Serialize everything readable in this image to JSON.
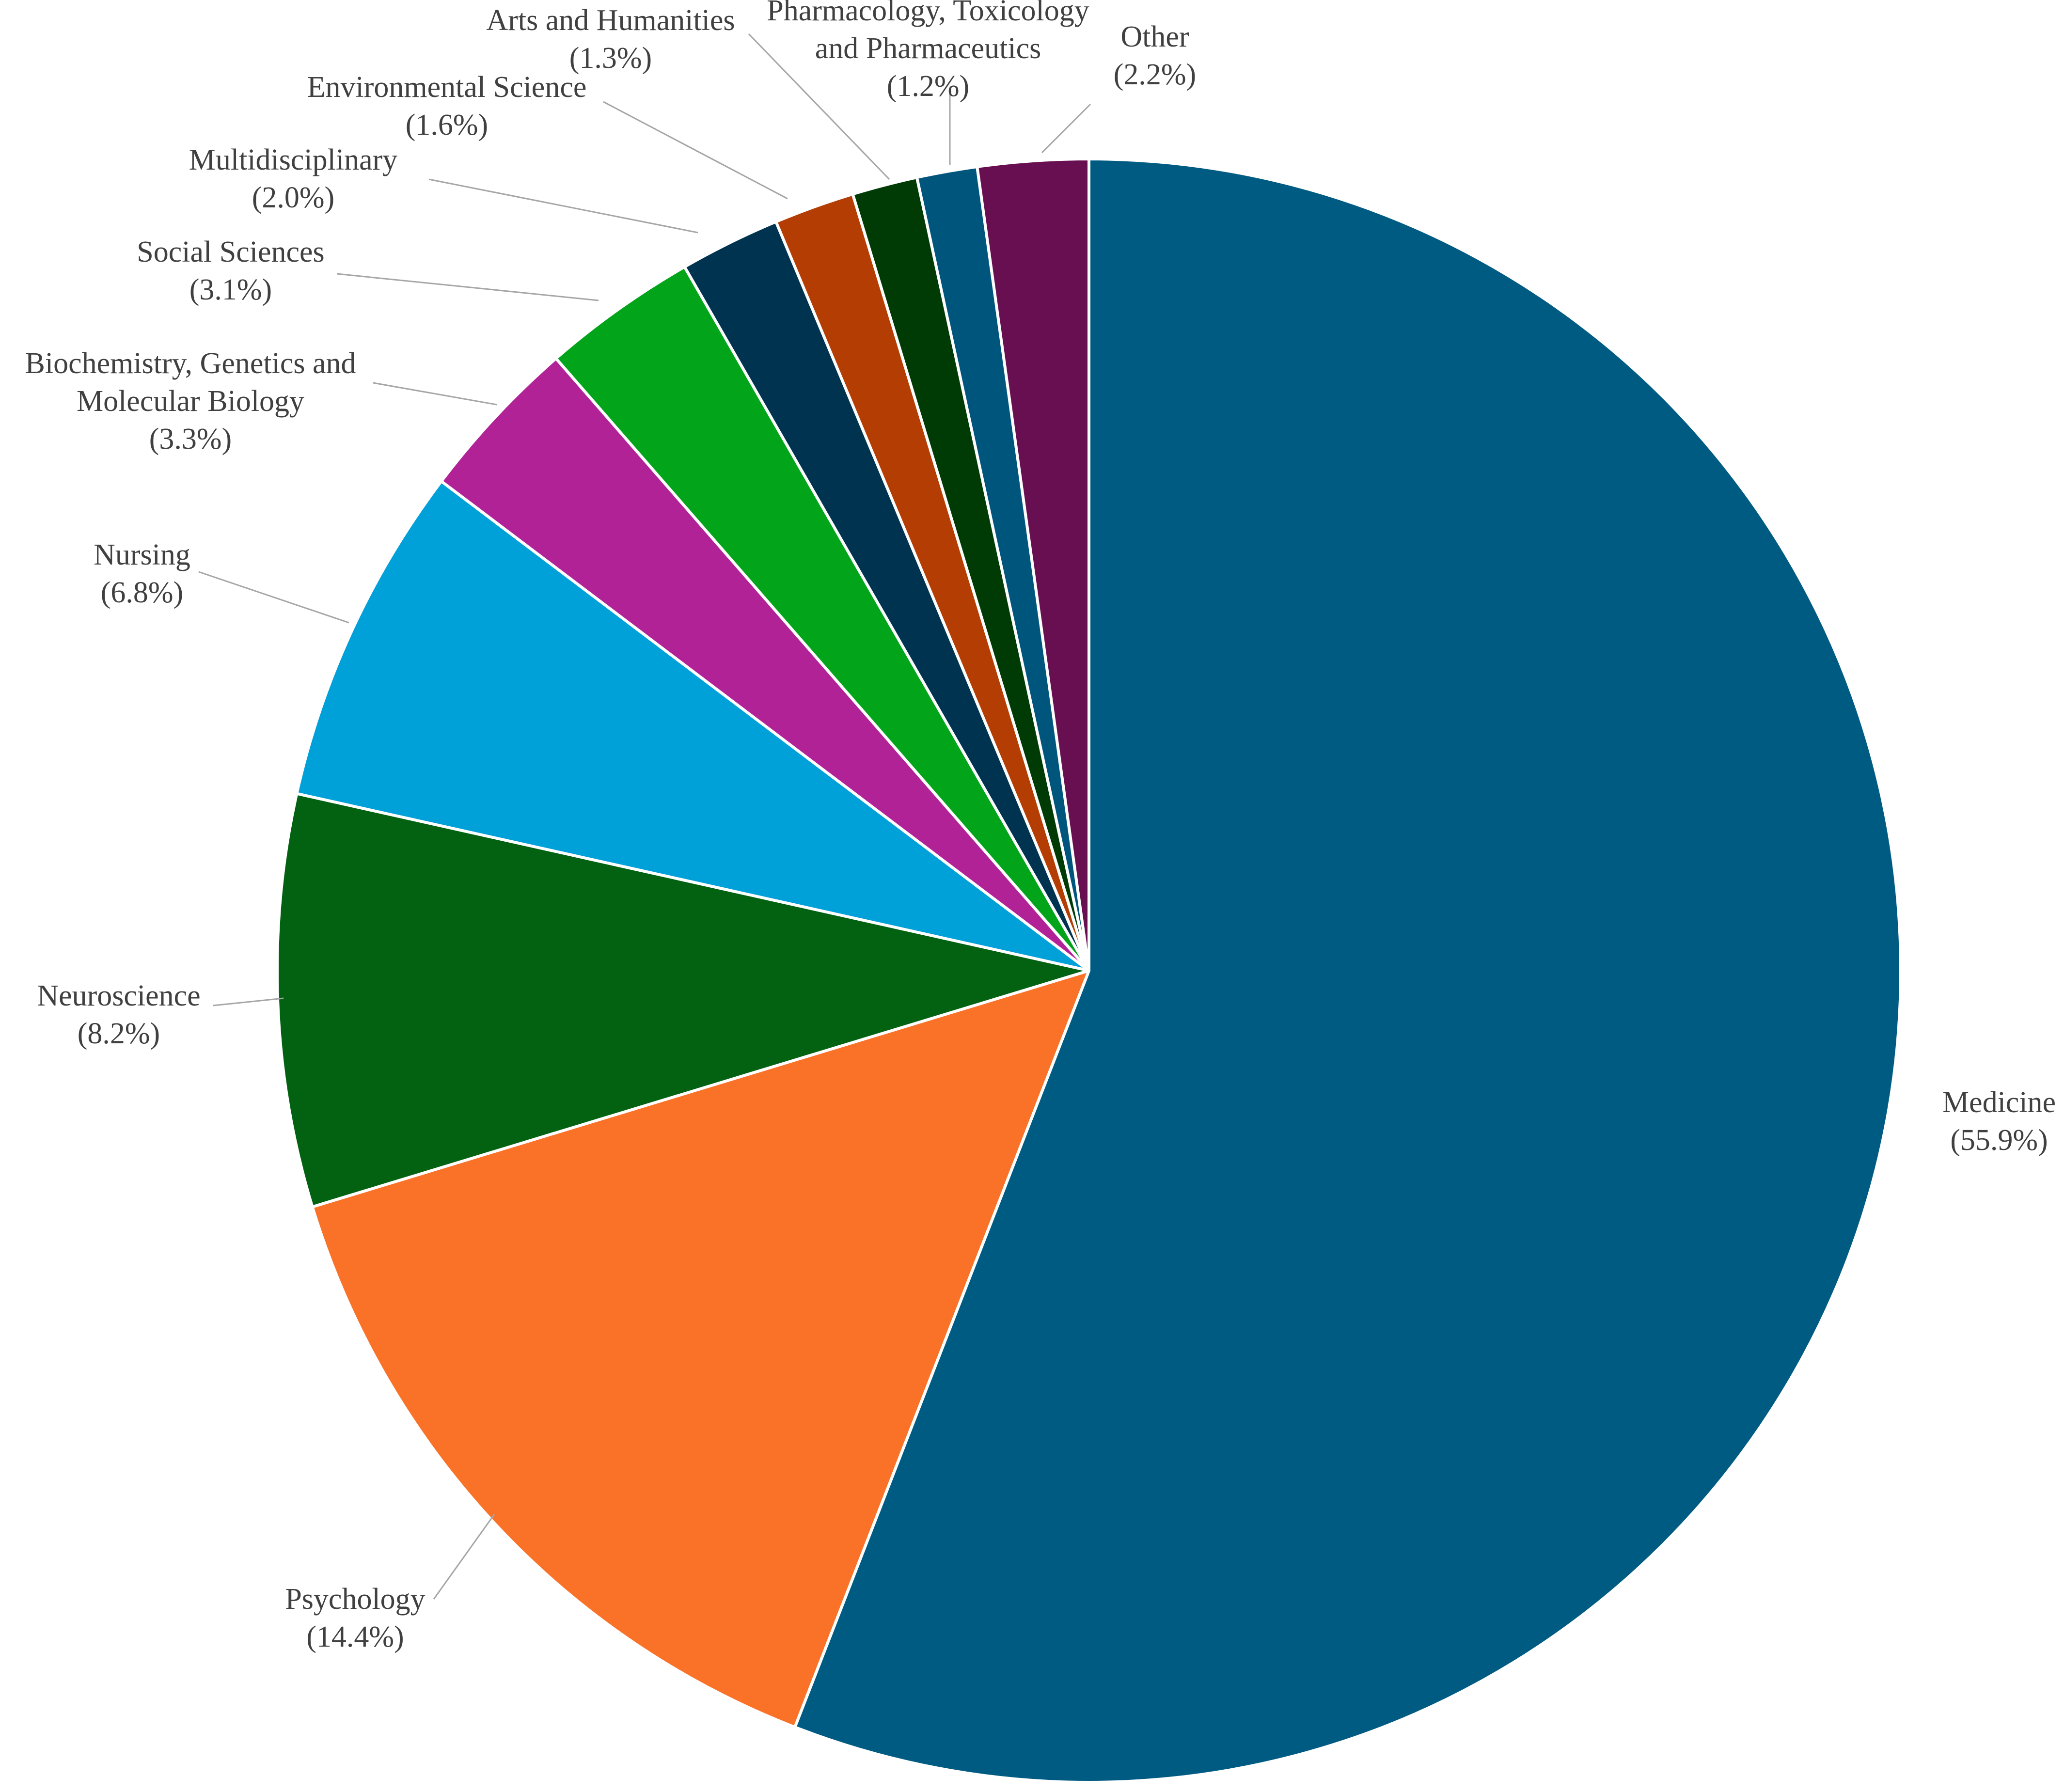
{
  "chart_data": {
    "type": "pie",
    "title": "",
    "start_angle_deg": 0,
    "direction": "clockwise",
    "slices": [
      {
        "label": "Medicine",
        "percent_label": "(55.9%)",
        "value": 55.9,
        "color": "#005b82"
      },
      {
        "label": "Psychology",
        "percent_label": "(14.4%)",
        "value": 14.4,
        "color": "#fa7228"
      },
      {
        "label": "Neuroscience",
        "percent_label": "(8.2%)",
        "value": 8.2,
        "color": "#036112"
      },
      {
        "label": "Nursing",
        "percent_label": "(6.8%)",
        "value": 6.8,
        "color": "#00a0d8"
      },
      {
        "label": "Biochemistry, Genetics and Molecular Biology",
        "percent_label": "(3.3%)",
        "value": 3.3,
        "color": "#b12297"
      },
      {
        "label": "Social Sciences",
        "percent_label": "(3.1%)",
        "value": 3.1,
        "color": "#02a51a"
      },
      {
        "label": "Multidisciplinary",
        "percent_label": "(2.0%)",
        "value": 2.0,
        "color": "#003350"
      },
      {
        "label": "Environmental Science",
        "percent_label": "(1.6%)",
        "value": 1.6,
        "color": "#b33d03"
      },
      {
        "label": "Arts and Humanities",
        "percent_label": "(1.3%)",
        "value": 1.3,
        "color": "#003b06"
      },
      {
        "label": "Pharmacology, Toxicology and Pharmaceutics",
        "percent_label": "(1.2%)",
        "value": 1.2,
        "color": "#00557c"
      },
      {
        "label": "Other",
        "percent_label": "(2.2%)",
        "value": 2.2,
        "color": "#680f52"
      }
    ]
  }
}
